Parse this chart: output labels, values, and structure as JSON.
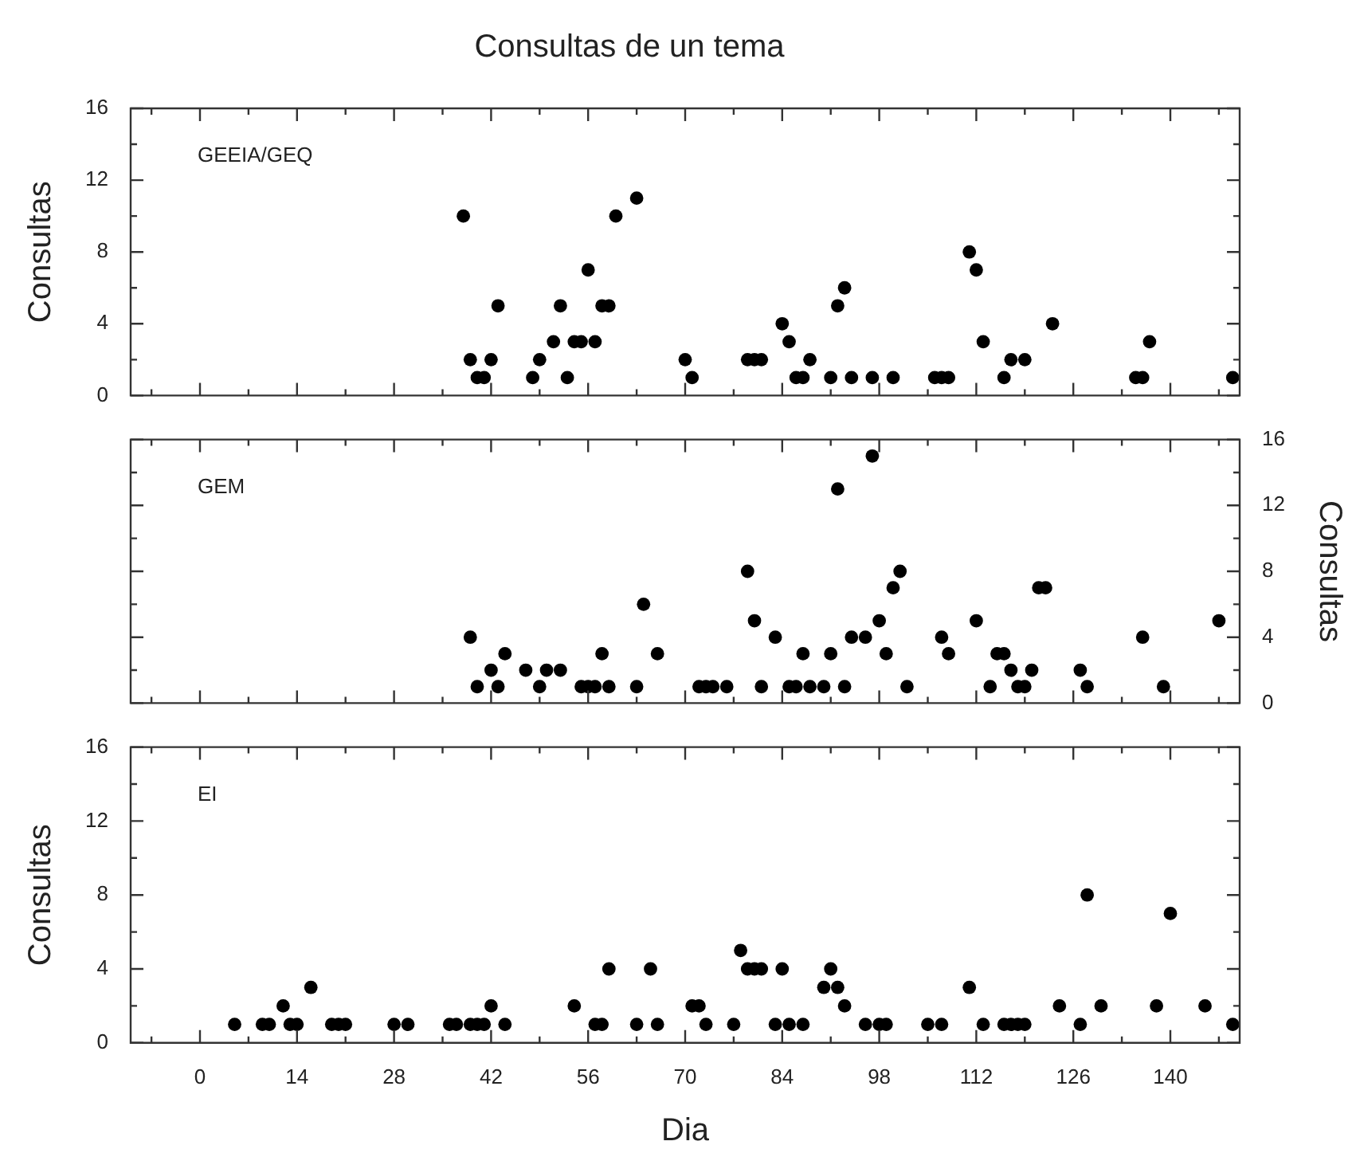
{
  "chart_data": [
    {
      "type": "scatter",
      "title": "Consultas de un tema",
      "ylabel": "Consultas",
      "annotations": [
        "GEEIA/GEQ"
      ],
      "marker": "circle",
      "tick_labels": "y",
      "xlim": [
        -10,
        150
      ],
      "xticks": [
        {
          "value": -7,
          "label": null
        },
        0,
        {
          "value": 7,
          "label": null
        },
        14,
        {
          "value": 21,
          "label": null
        },
        28,
        {
          "value": 35,
          "label": null
        },
        42,
        {
          "value": 49,
          "label": null
        },
        56,
        {
          "value": 63,
          "label": null
        },
        70,
        {
          "value": 77,
          "label": null
        },
        84,
        {
          "value": 91,
          "label": null
        },
        98,
        {
          "value": 105,
          "label": null
        },
        112,
        {
          "value": 119,
          "label": null
        },
        126,
        {
          "value": 133,
          "label": null
        },
        140,
        {
          "value": 147,
          "label": null
        }
      ],
      "ylim": [
        0,
        16
      ],
      "yticks": [
        0,
        {
          "value": 2,
          "label": null
        },
        4,
        {
          "value": 6,
          "label": null
        },
        8,
        {
          "value": 10,
          "label": null
        },
        12,
        {
          "value": 14,
          "label": null
        },
        16
      ],
      "series": [
        {
          "color": "#000000",
          "x": [
            38,
            39,
            40,
            41,
            42,
            43,
            48,
            49,
            51,
            52,
            53,
            54,
            55,
            56,
            57,
            58,
            59,
            60,
            63,
            70,
            71,
            79,
            80,
            81,
            84,
            85,
            86,
            87,
            88,
            91,
            92,
            93,
            94,
            97,
            100,
            106,
            107,
            108,
            111,
            112,
            113,
            116,
            117,
            119,
            123,
            135,
            136,
            137,
            149
          ],
          "values": [
            10,
            2,
            1,
            1,
            2,
            5,
            1,
            2,
            3,
            5,
            1,
            3,
            3,
            7,
            3,
            5,
            5,
            10,
            11,
            2,
            1,
            2,
            2,
            2,
            4,
            3,
            1,
            1,
            2,
            1,
            5,
            6,
            1,
            1,
            1,
            1,
            1,
            1,
            8,
            7,
            3,
            1,
            2,
            2,
            4,
            1,
            1,
            3,
            1
          ]
        }
      ]
    },
    {
      "type": "scatter",
      "y2label": "Consultas",
      "annotations": [
        "GEM"
      ],
      "marker": "circle",
      "tick_labels": "y",
      "xlim": [
        -10,
        150
      ],
      "xticks": [
        {
          "value": -7,
          "label": null
        },
        0,
        {
          "value": 7,
          "label": null
        },
        14,
        {
          "value": 21,
          "label": null
        },
        28,
        {
          "value": 35,
          "label": null
        },
        42,
        {
          "value": 49,
          "label": null
        },
        56,
        {
          "value": 63,
          "label": null
        },
        70,
        {
          "value": 77,
          "label": null
        },
        84,
        {
          "value": 91,
          "label": null
        },
        98,
        {
          "value": 105,
          "label": null
        },
        112,
        {
          "value": 119,
          "label": null
        },
        126,
        {
          "value": 133,
          "label": null
        },
        140,
        {
          "value": 147,
          "label": null
        }
      ],
      "y2lim": [
        0,
        16
      ],
      "y2ticks": [
        0,
        {
          "value": 2,
          "label": null
        },
        4,
        {
          "value": 6,
          "label": null
        },
        8,
        {
          "value": 10,
          "label": null
        },
        12,
        {
          "value": 14,
          "label": null
        },
        16
      ],
      "series": [
        {
          "color": "#000000",
          "axis": "y2",
          "x": [
            39,
            40,
            42,
            43,
            44,
            47,
            49,
            50,
            52,
            55,
            56,
            57,
            58,
            59,
            63,
            64,
            66,
            72,
            73,
            74,
            76,
            79,
            80,
            81,
            83,
            85,
            86,
            87,
            88,
            90,
            91,
            92,
            93,
            94,
            96,
            97,
            98,
            99,
            100,
            101,
            102,
            107,
            108,
            112,
            114,
            115,
            116,
            117,
            118,
            119,
            120,
            121,
            122,
            127,
            128,
            136,
            139,
            147
          ],
          "values": [
            4,
            1,
            2,
            1,
            3,
            2,
            1,
            2,
            2,
            1,
            1,
            1,
            3,
            1,
            1,
            6,
            3,
            1,
            1,
            1,
            1,
            8,
            5,
            1,
            4,
            1,
            1,
            3,
            1,
            1,
            3,
            13,
            1,
            4,
            4,
            15,
            5,
            3,
            7,
            8,
            1,
            4,
            3,
            5,
            1,
            3,
            3,
            2,
            1,
            1,
            2,
            7,
            7,
            2,
            1,
            4,
            1,
            5
          ]
        }
      ]
    },
    {
      "type": "scatter",
      "xlabel": "Dia",
      "ylabel": "Consultas",
      "annotations": [
        "EI"
      ],
      "marker": "circle",
      "xlim": [
        -10,
        150
      ],
      "xticks": [
        {
          "value": -7,
          "label": null
        },
        0,
        {
          "value": 7,
          "label": null
        },
        14,
        {
          "value": 21,
          "label": null
        },
        28,
        {
          "value": 35,
          "label": null
        },
        42,
        {
          "value": 49,
          "label": null
        },
        56,
        {
          "value": 63,
          "label": null
        },
        70,
        {
          "value": 77,
          "label": null
        },
        84,
        {
          "value": 91,
          "label": null
        },
        98,
        {
          "value": 105,
          "label": null
        },
        112,
        {
          "value": 119,
          "label": null
        },
        126,
        {
          "value": 133,
          "label": null
        },
        140,
        {
          "value": 147,
          "label": null
        }
      ],
      "ylim": [
        0,
        16
      ],
      "yticks": [
        0,
        {
          "value": 2,
          "label": null
        },
        4,
        {
          "value": 6,
          "label": null
        },
        8,
        {
          "value": 10,
          "label": null
        },
        12,
        {
          "value": 14,
          "label": null
        },
        16
      ],
      "series": [
        {
          "color": "#000000",
          "x": [
            5,
            9,
            10,
            12,
            13,
            14,
            16,
            19,
            20,
            21,
            28,
            30,
            36,
            37,
            39,
            40,
            41,
            42,
            44,
            54,
            57,
            58,
            59,
            63,
            65,
            66,
            71,
            72,
            73,
            77,
            78,
            79,
            80,
            81,
            83,
            84,
            85,
            87,
            90,
            91,
            92,
            93,
            96,
            98,
            99,
            105,
            107,
            111,
            113,
            116,
            117,
            118,
            119,
            124,
            127,
            128,
            130,
            138,
            140,
            145,
            149
          ],
          "values": [
            1,
            1,
            1,
            2,
            1,
            1,
            3,
            1,
            1,
            1,
            1,
            1,
            1,
            1,
            1,
            1,
            1,
            2,
            1,
            2,
            1,
            1,
            4,
            1,
            4,
            1,
            2,
            2,
            1,
            1,
            5,
            4,
            4,
            4,
            1,
            4,
            1,
            1,
            3,
            4,
            3,
            2,
            1,
            1,
            1,
            1,
            1,
            3,
            1,
            1,
            1,
            1,
            1,
            2,
            1,
            8,
            2,
            2,
            7,
            2,
            1
          ]
        }
      ]
    }
  ]
}
